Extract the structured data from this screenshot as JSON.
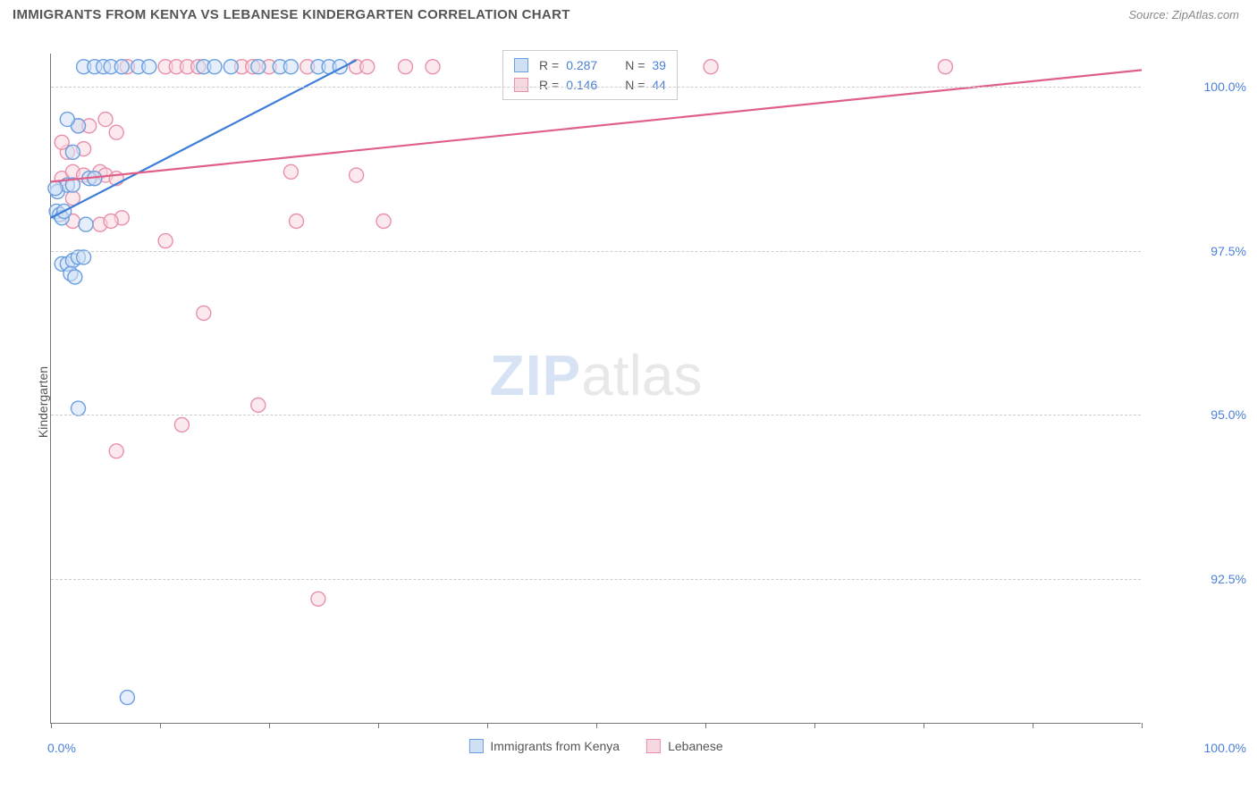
{
  "title": "IMMIGRANTS FROM KENYA VS LEBANESE KINDERGARTEN CORRELATION CHART",
  "source": "Source: ZipAtlas.com",
  "watermark": {
    "part1": "ZIP",
    "part2": "atlas"
  },
  "y_axis": {
    "label": "Kindergarten"
  },
  "chart": {
    "type": "scatter",
    "background_color": "#ffffff",
    "grid_color": "#cccccc",
    "axis_color": "#777777",
    "tick_label_color": "#4a7fd8",
    "title_fontsize": 15,
    "label_fontsize": 14,
    "marker_radius": 8,
    "marker_opacity": 0.55,
    "xlim": [
      0,
      100
    ],
    "ylim": [
      90.3,
      100.5
    ],
    "y_ticks": [
      {
        "value": 92.5,
        "label": "92.5%"
      },
      {
        "value": 95.0,
        "label": "95.0%"
      },
      {
        "value": 97.5,
        "label": "97.5%"
      },
      {
        "value": 100.0,
        "label": "100.0%"
      }
    ],
    "x_ticks_minor": [
      0,
      10,
      20,
      30,
      40,
      50,
      60,
      70,
      80,
      90,
      100
    ],
    "x_tick_labels": [
      {
        "value": 0,
        "label": "0.0%"
      },
      {
        "value": 100,
        "label": "100.0%"
      }
    ],
    "series": [
      {
        "id": "kenya",
        "name": "Immigrants from Kenya",
        "color_fill": "#cfe0f5",
        "color_stroke": "#6a9fe0",
        "line_color": "#3b7dd8",
        "r_value": "0.287",
        "n_value": "39",
        "trend_line": {
          "x1": 0,
          "y1": 98.0,
          "x2": 28,
          "y2": 100.4
        },
        "points": [
          {
            "x": 0.5,
            "y": 98.1
          },
          {
            "x": 0.8,
            "y": 98.05
          },
          {
            "x": 1.0,
            "y": 98.0
          },
          {
            "x": 1.2,
            "y": 98.1
          },
          {
            "x": 0.6,
            "y": 98.4
          },
          {
            "x": 1.5,
            "y": 98.5
          },
          {
            "x": 2.0,
            "y": 98.5
          },
          {
            "x": 0.4,
            "y": 98.45
          },
          {
            "x": 1.0,
            "y": 97.3
          },
          {
            "x": 1.5,
            "y": 97.3
          },
          {
            "x": 2.0,
            "y": 97.35
          },
          {
            "x": 2.5,
            "y": 97.4
          },
          {
            "x": 1.8,
            "y": 97.15
          },
          {
            "x": 2.2,
            "y": 97.1
          },
          {
            "x": 3.0,
            "y": 97.4
          },
          {
            "x": 3.5,
            "y": 98.6
          },
          {
            "x": 4.0,
            "y": 98.6
          },
          {
            "x": 2.0,
            "y": 99.0
          },
          {
            "x": 2.5,
            "y": 99.4
          },
          {
            "x": 1.5,
            "y": 99.5
          },
          {
            "x": 3.0,
            "y": 100.3
          },
          {
            "x": 4.0,
            "y": 100.3
          },
          {
            "x": 4.8,
            "y": 100.3
          },
          {
            "x": 5.5,
            "y": 100.3
          },
          {
            "x": 6.5,
            "y": 100.3
          },
          {
            "x": 8.0,
            "y": 100.3
          },
          {
            "x": 9.0,
            "y": 100.3
          },
          {
            "x": 14.0,
            "y": 100.3
          },
          {
            "x": 15.0,
            "y": 100.3
          },
          {
            "x": 16.5,
            "y": 100.3
          },
          {
            "x": 19.0,
            "y": 100.3
          },
          {
            "x": 21.0,
            "y": 100.3
          },
          {
            "x": 22.0,
            "y": 100.3
          },
          {
            "x": 24.5,
            "y": 100.3
          },
          {
            "x": 25.5,
            "y": 100.3
          },
          {
            "x": 26.5,
            "y": 100.3
          },
          {
            "x": 2.5,
            "y": 95.1
          },
          {
            "x": 3.2,
            "y": 97.9
          },
          {
            "x": 7.0,
            "y": 90.7
          }
        ]
      },
      {
        "id": "lebanese",
        "name": "Lebanese",
        "color_fill": "#f7d7e0",
        "color_stroke": "#e890ab",
        "line_color": "#e05f88",
        "r_value": "0.146",
        "n_value": "44",
        "trend_line": {
          "x1": 0,
          "y1": 98.55,
          "x2": 100,
          "y2": 100.25
        },
        "points": [
          {
            "x": 1.0,
            "y": 98.6
          },
          {
            "x": 2.0,
            "y": 98.7
          },
          {
            "x": 3.0,
            "y": 98.65
          },
          {
            "x": 4.0,
            "y": 98.6
          },
          {
            "x": 4.5,
            "y": 98.7
          },
          {
            "x": 5.0,
            "y": 98.65
          },
          {
            "x": 1.5,
            "y": 99.0
          },
          {
            "x": 2.5,
            "y": 99.4
          },
          {
            "x": 3.5,
            "y": 99.4
          },
          {
            "x": 5.0,
            "y": 99.5
          },
          {
            "x": 3.0,
            "y": 99.05
          },
          {
            "x": 2.0,
            "y": 97.95
          },
          {
            "x": 4.5,
            "y": 97.9
          },
          {
            "x": 6.0,
            "y": 98.6
          },
          {
            "x": 6.0,
            "y": 99.3
          },
          {
            "x": 6.5,
            "y": 98.0
          },
          {
            "x": 7.0,
            "y": 100.3
          },
          {
            "x": 10.5,
            "y": 100.3
          },
          {
            "x": 11.5,
            "y": 100.3
          },
          {
            "x": 12.5,
            "y": 100.3
          },
          {
            "x": 13.5,
            "y": 100.3
          },
          {
            "x": 17.5,
            "y": 100.3
          },
          {
            "x": 18.5,
            "y": 100.3
          },
          {
            "x": 20.0,
            "y": 100.3
          },
          {
            "x": 23.5,
            "y": 100.3
          },
          {
            "x": 28.0,
            "y": 100.3
          },
          {
            "x": 29.0,
            "y": 100.3
          },
          {
            "x": 32.5,
            "y": 100.3
          },
          {
            "x": 35.0,
            "y": 100.3
          },
          {
            "x": 60.5,
            "y": 100.3
          },
          {
            "x": 82.0,
            "y": 100.3
          },
          {
            "x": 22.0,
            "y": 98.7
          },
          {
            "x": 28.0,
            "y": 98.65
          },
          {
            "x": 22.5,
            "y": 97.95
          },
          {
            "x": 30.5,
            "y": 97.95
          },
          {
            "x": 10.5,
            "y": 97.65
          },
          {
            "x": 5.5,
            "y": 97.95
          },
          {
            "x": 14.0,
            "y": 96.55
          },
          {
            "x": 12.0,
            "y": 94.85
          },
          {
            "x": 6.0,
            "y": 94.45
          },
          {
            "x": 19.0,
            "y": 95.15
          },
          {
            "x": 24.5,
            "y": 92.2
          },
          {
            "x": 1.0,
            "y": 99.15
          },
          {
            "x": 2.0,
            "y": 98.3
          }
        ]
      }
    ]
  }
}
